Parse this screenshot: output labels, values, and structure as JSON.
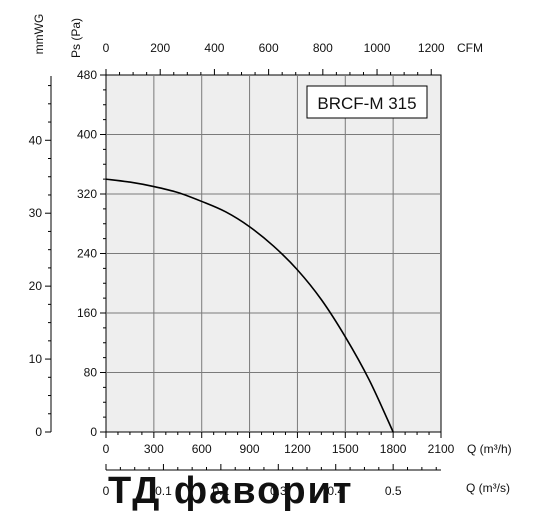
{
  "chart_data": {
    "type": "line",
    "model_label": "BRCF-M 315",
    "watermark": "ТД фаворит",
    "series": [
      {
        "x": [
          0,
          150,
          300,
          450,
          600,
          750,
          900,
          1050,
          1200,
          1350,
          1500,
          1650,
          1800
        ],
        "y": [
          340,
          336,
          330,
          322,
          310,
          296,
          276,
          250,
          218,
          178,
          128,
          70,
          0
        ]
      }
    ],
    "axes": {
      "bottom_q_m3h": {
        "label": "Q (m³/h)",
        "range": [
          0,
          2100
        ],
        "ticks": [
          "0",
          "300",
          "600",
          "900",
          "1200",
          "1500",
          "1800",
          "2100"
        ]
      },
      "top_cfm": {
        "label": "CFM",
        "range": [
          0,
          1236
        ],
        "ticks": [
          "0",
          "200",
          "400",
          "600",
          "800",
          "1000",
          "1200"
        ]
      },
      "bottom2_q_m3s": {
        "label": "Q (m³/s)",
        "range": [
          0,
          0.5833
        ],
        "ticks": [
          "0",
          "0.1",
          "0.2",
          "0.3",
          "0.4",
          "0.5"
        ]
      },
      "left_ps": {
        "label": "Ps (Pa)",
        "range": [
          0,
          480
        ],
        "ticks": [
          "0",
          "80",
          "160",
          "240",
          "320",
          "400",
          "480"
        ]
      },
      "far_left_mmwg": {
        "label": "mmWG",
        "range": [
          0,
          48.95
        ],
        "ticks": [
          "0",
          "10",
          "20",
          "30",
          "40"
        ]
      }
    },
    "grid": true,
    "background_color": "#eeeeee",
    "curve_color": "#000000"
  }
}
